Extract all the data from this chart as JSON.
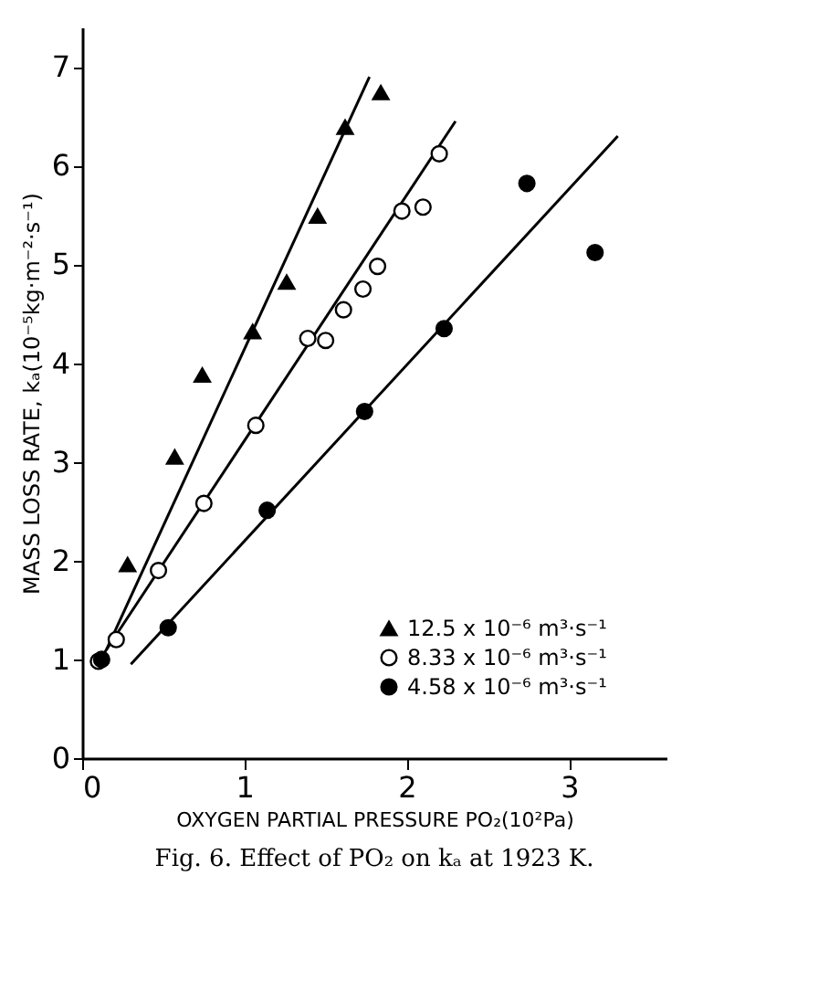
{
  "chart_data": {
    "type": "scatter",
    "title": "Fig. 6.   Effect of PO₂ on kₐ at 1923 K.",
    "xlabel": "OXYGEN PARTIAL PRESSURE   PO₂(10²Pa)",
    "ylabel": "MASS LOSS RATE, kₐ(10⁻⁵kg·m⁻²·s⁻¹)",
    "xlim": [
      0,
      3.6
    ],
    "ylim": [
      0,
      7.4
    ],
    "xticks": [
      0,
      1,
      2,
      3
    ],
    "yticks": [
      0,
      1,
      2,
      3,
      4,
      5,
      6,
      7
    ],
    "grid": false,
    "legend": "bottom right",
    "series": [
      {
        "name": "12.5 x 10⁻⁶ m³·s⁻¹",
        "marker": "triangle",
        "color": "#000000",
        "x": [
          0.28,
          0.57,
          0.74,
          1.05,
          1.26,
          1.45,
          1.62,
          1.84
        ],
        "values": [
          1.96,
          3.05,
          3.88,
          4.32,
          4.82,
          5.49,
          6.39,
          6.74
        ]
      },
      {
        "name": "8.33 x 10⁻⁶ m³·s⁻¹",
        "marker": "circle",
        "color": "#ffffff",
        "x": [
          0.1,
          0.21,
          0.47,
          0.75,
          1.07,
          1.39,
          1.5,
          1.61,
          1.73,
          1.82,
          1.97,
          2.1,
          2.2
        ],
        "values": [
          0.98,
          1.2,
          1.9,
          2.58,
          3.37,
          4.25,
          4.23,
          4.54,
          4.75,
          4.98,
          5.54,
          5.58,
          6.12
        ]
      },
      {
        "name": "4.58 x 10⁻⁶ m³·s⁻¹",
        "marker": "circle",
        "color": "#000000",
        "x": [
          0.12,
          0.53,
          1.14,
          1.74,
          2.23,
          2.74,
          3.16
        ],
        "values": [
          1.0,
          1.32,
          2.51,
          3.51,
          4.35,
          5.82,
          5.12
        ]
      },
      {
        "type": "line",
        "color": "#000000",
        "x": [
          0.15,
          1.77
        ],
        "values": [
          1.1,
          6.9
        ]
      },
      {
        "type": "line",
        "color": "#000000",
        "x": [
          0.13,
          2.3
        ],
        "values": [
          1.05,
          6.45
        ]
      },
      {
        "type": "line",
        "color": "#000000",
        "x": [
          0.3,
          3.3
        ],
        "values": [
          0.95,
          6.3
        ]
      }
    ]
  }
}
